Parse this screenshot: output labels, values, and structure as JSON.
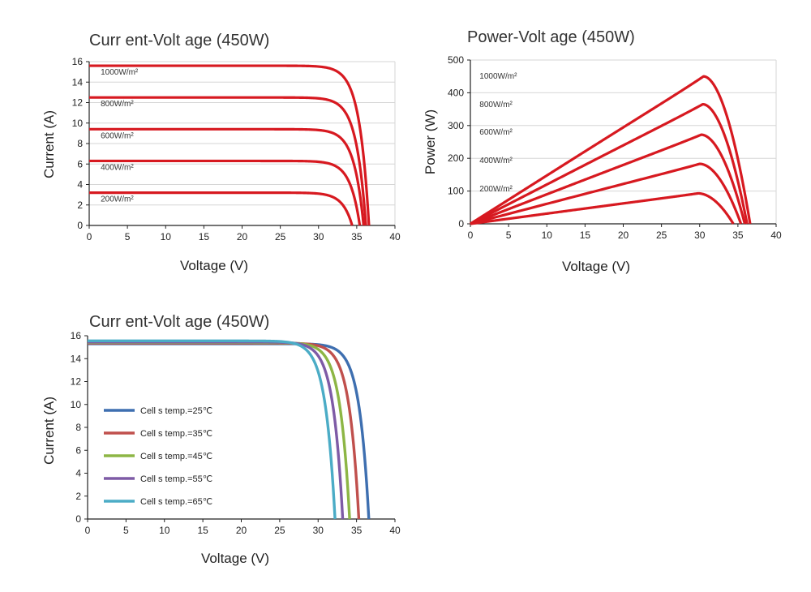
{
  "chart_data": [
    {
      "id": "iv_irradiance",
      "type": "line",
      "title": "Curr ent-Volt age  (450W)",
      "xlabel": "Voltage (V)",
      "ylabel": "Current (A)",
      "xlim": [
        0,
        40
      ],
      "ylim": [
        0,
        16
      ],
      "xticks": [
        "0",
        "5",
        "10",
        "15",
        "20",
        "25",
        "30",
        "35",
        "40"
      ],
      "yticks": [
        "0",
        "2",
        "4",
        "6",
        "8",
        "10",
        "12",
        "14",
        "16"
      ],
      "grid": "horizontal",
      "line_color": "#d71920",
      "series": [
        {
          "name": "1000W/m²",
          "isc": 15.6,
          "voc": 36.6
        },
        {
          "name": "800W/m²",
          "isc": 12.5,
          "voc": 36.2
        },
        {
          "name": "600W/m²",
          "isc": 9.4,
          "voc": 35.9
        },
        {
          "name": "400W/m²",
          "isc": 6.3,
          "voc": 35.4
        },
        {
          "name": "200W/m²",
          "isc": 3.2,
          "voc": 34.4
        }
      ]
    },
    {
      "id": "pv_irradiance",
      "type": "line",
      "title": "Power-Volt age  (450W)",
      "xlabel": "Voltage (V)",
      "ylabel": "Power (W)",
      "xlim": [
        0,
        40
      ],
      "ylim": [
        0,
        500
      ],
      "xticks": [
        "0",
        "5",
        "10",
        "15",
        "20",
        "25",
        "30",
        "35",
        "40"
      ],
      "yticks": [
        "0",
        "100",
        "200",
        "300",
        "400",
        "500"
      ],
      "grid": "horizontal",
      "line_color": "#d71920",
      "series": [
        {
          "name": "1000W/m²",
          "vmp": 30.5,
          "pmax": 450,
          "voc": 36.6
        },
        {
          "name": "800W/m²",
          "vmp": 30.4,
          "pmax": 365,
          "voc": 36.2
        },
        {
          "name": "600W/m²",
          "vmp": 30.2,
          "pmax": 272,
          "voc": 35.9
        },
        {
          "name": "400W/m²",
          "vmp": 30.0,
          "pmax": 183,
          "voc": 35.4
        },
        {
          "name": "200W/m²",
          "vmp": 29.8,
          "pmax": 93,
          "voc": 34.4
        }
      ]
    },
    {
      "id": "iv_temperature",
      "type": "line",
      "title": "Curr ent-Volt age  (450W)",
      "xlabel": "Voltage (V)",
      "ylabel": "Current (A)",
      "xlim": [
        0,
        40
      ],
      "ylim": [
        0,
        16
      ],
      "xticks": [
        "0",
        "5",
        "10",
        "15",
        "20",
        "25",
        "30",
        "35",
        "40"
      ],
      "yticks": [
        "0",
        "2",
        "4",
        "6",
        "8",
        "10",
        "12",
        "14",
        "16"
      ],
      "grid": "none",
      "legend": "center-left",
      "series": [
        {
          "name": "Cell s temp.=25℃",
          "color": "#3e6fb0",
          "isc": 15.3,
          "voc": 36.6
        },
        {
          "name": "Cell s temp.=35℃",
          "color": "#c0504d",
          "isc": 15.35,
          "voc": 35.3
        },
        {
          "name": "Cell s temp.=45℃",
          "color": "#8db645",
          "isc": 15.4,
          "voc": 34.1
        },
        {
          "name": "Cell s temp.=55℃",
          "color": "#7e5ba6",
          "isc": 15.45,
          "voc": 33.2
        },
        {
          "name": "Cell s temp.=65℃",
          "color": "#4bacc6",
          "isc": 15.55,
          "voc": 32.2
        }
      ]
    }
  ]
}
